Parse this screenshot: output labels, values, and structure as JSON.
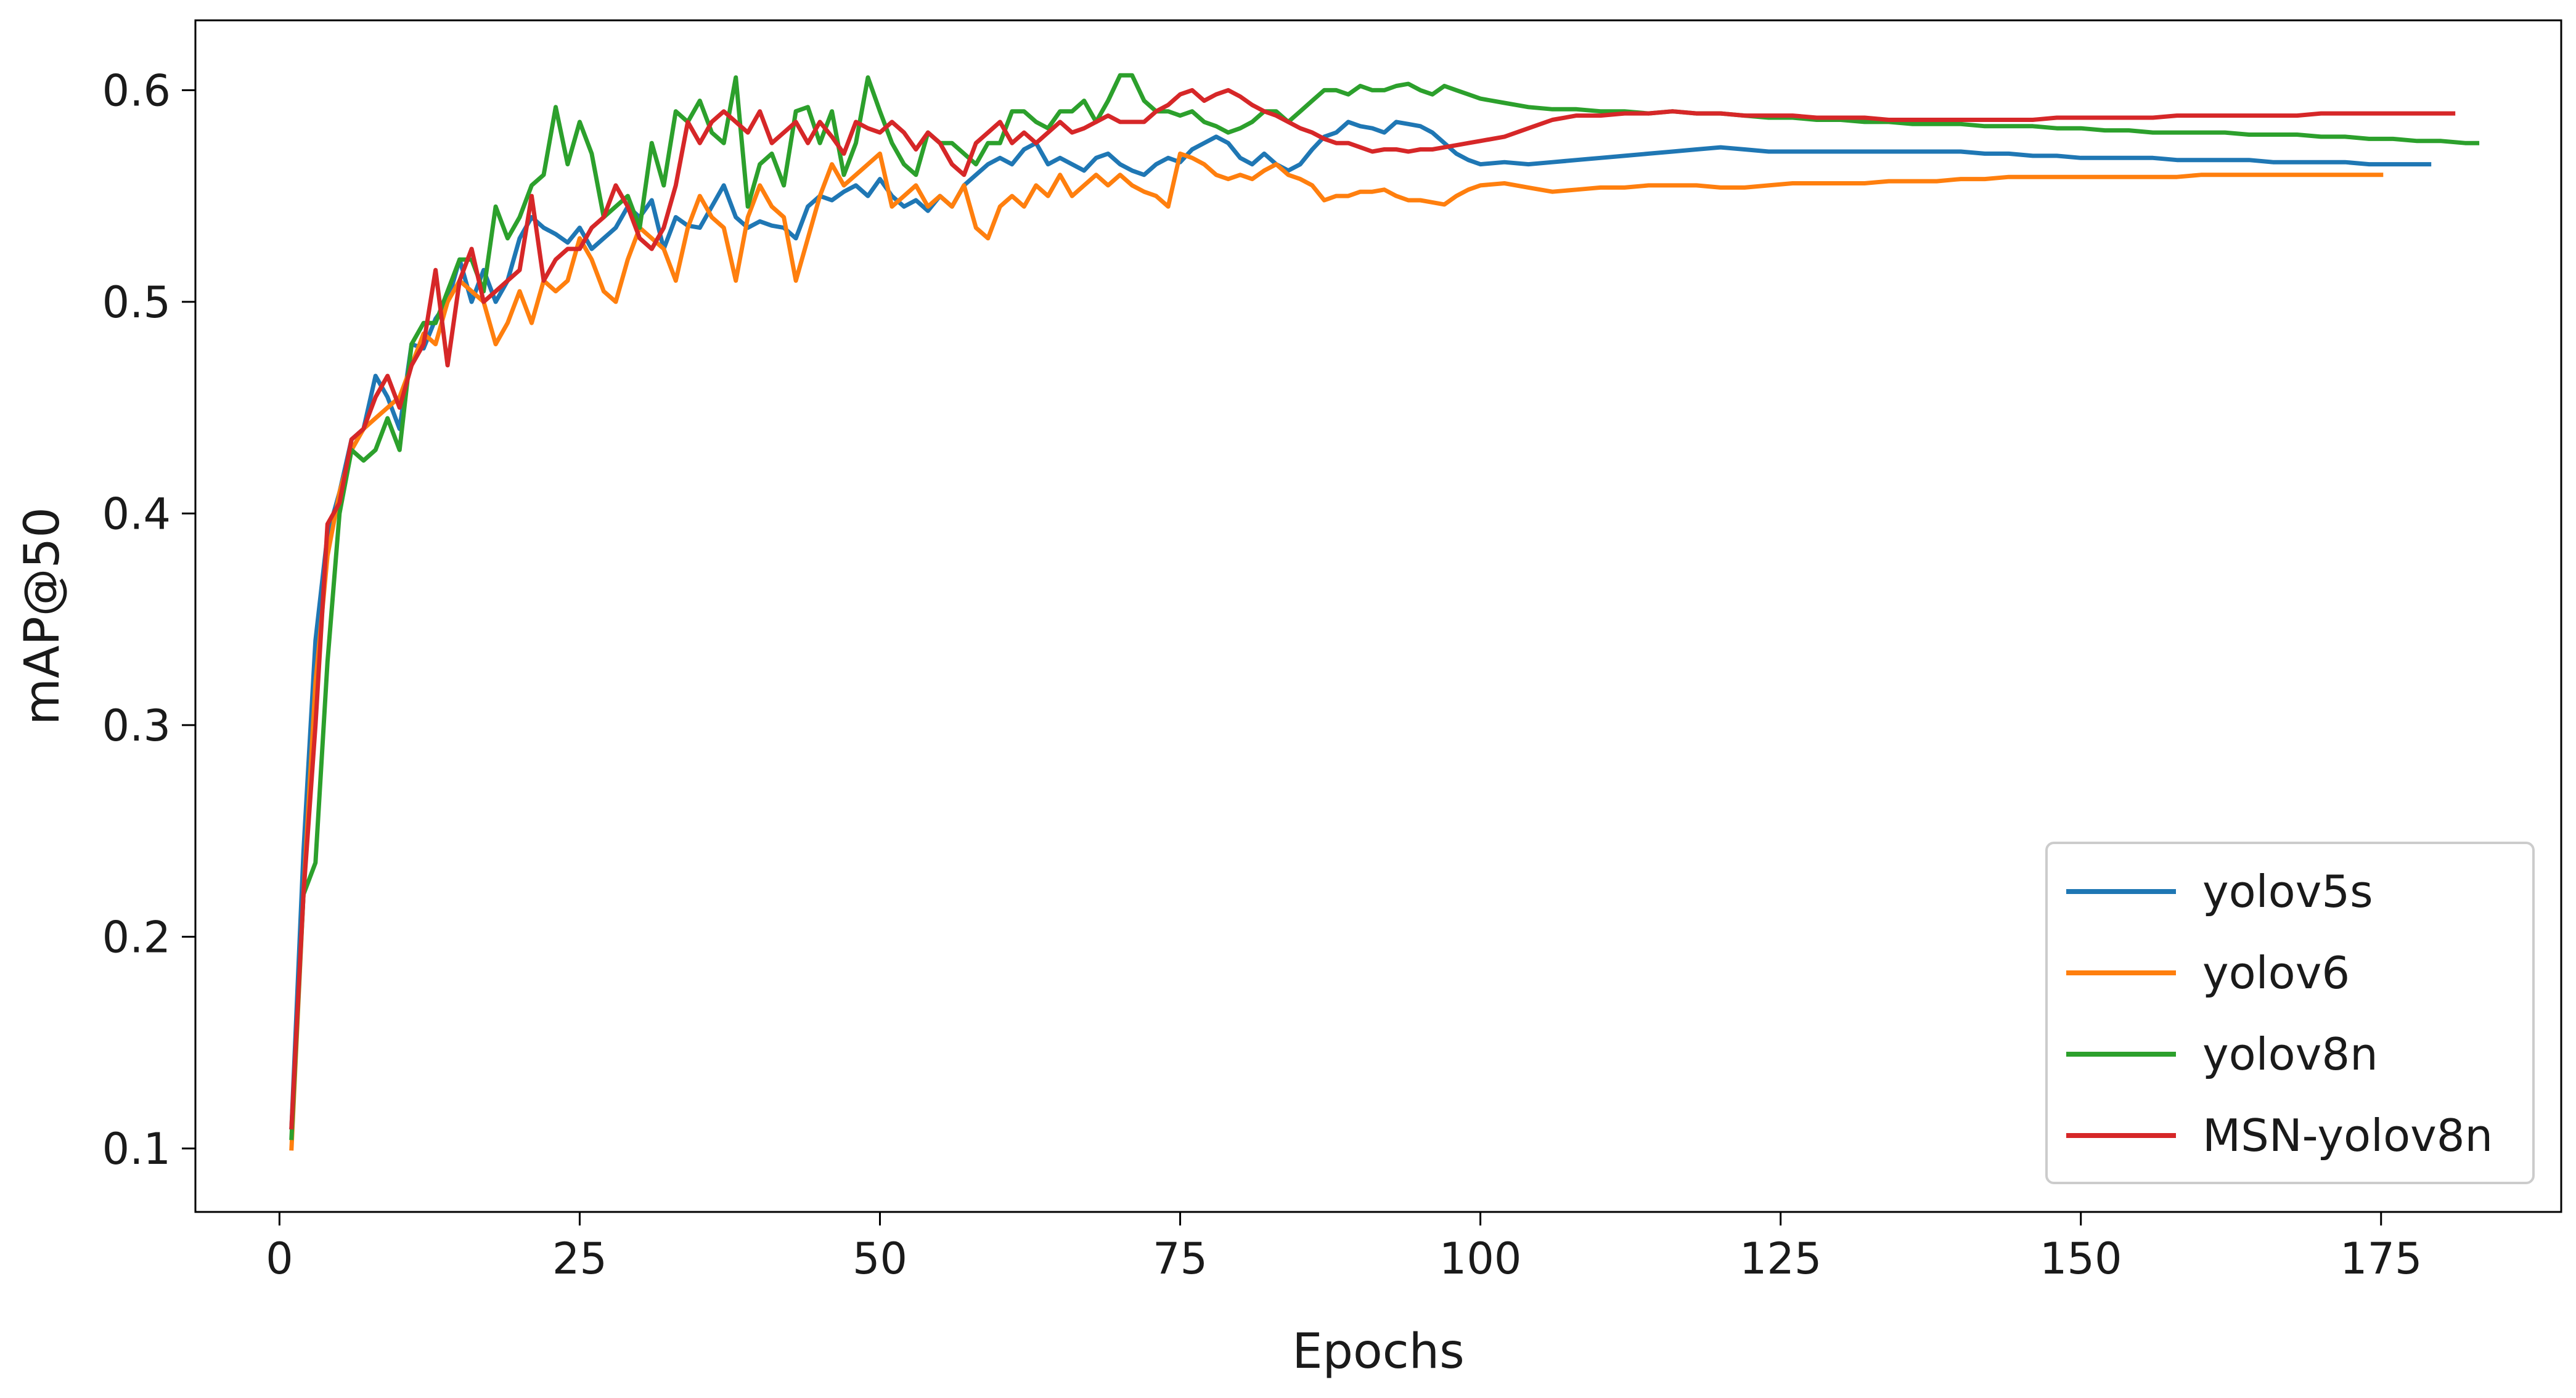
{
  "chart_data": {
    "type": "line",
    "title": "",
    "xlabel": "Epochs",
    "ylabel": "mAP@50",
    "xlim": [
      -7,
      190
    ],
    "ylim": [
      0.07,
      0.633
    ],
    "xticks": [
      0,
      25,
      50,
      75,
      100,
      125,
      150,
      175
    ],
    "yticks": [
      0.1,
      0.2,
      0.3,
      0.4,
      0.5,
      0.6
    ],
    "grid": false,
    "legend_position": "lower-right",
    "series": [
      {
        "name": "yolov5s",
        "color": "#1f77b4",
        "x": [
          1,
          2,
          3,
          4,
          5,
          6,
          7,
          8,
          9,
          10,
          11,
          12,
          13,
          14,
          15,
          16,
          17,
          18,
          19,
          20,
          21,
          22,
          23,
          24,
          25,
          26,
          27,
          28,
          29,
          30,
          31,
          32,
          33,
          34,
          35,
          36,
          37,
          38,
          39,
          40,
          41,
          42,
          43,
          44,
          45,
          46,
          47,
          48,
          49,
          50,
          51,
          52,
          53,
          54,
          55,
          56,
          57,
          58,
          59,
          60,
          61,
          62,
          63,
          64,
          65,
          66,
          67,
          68,
          69,
          70,
          71,
          72,
          73,
          74,
          75,
          76,
          77,
          78,
          79,
          80,
          81,
          82,
          83,
          84,
          85,
          86,
          87,
          88,
          89,
          90,
          91,
          92,
          93,
          94,
          95,
          96,
          97,
          98,
          99,
          100,
          102,
          104,
          106,
          108,
          110,
          112,
          114,
          116,
          118,
          120,
          122,
          124,
          126,
          128,
          130,
          132,
          134,
          136,
          138,
          140,
          142,
          144,
          146,
          148,
          150,
          152,
          154,
          156,
          158,
          160,
          162,
          164,
          166,
          168,
          170,
          172,
          174,
          176,
          178,
          179
        ],
        "y": [
          0.11,
          0.24,
          0.34,
          0.39,
          0.41,
          0.435,
          0.44,
          0.465,
          0.455,
          0.44,
          0.48,
          0.478,
          0.492,
          0.5,
          0.52,
          0.5,
          0.515,
          0.5,
          0.51,
          0.53,
          0.54,
          0.535,
          0.532,
          0.528,
          0.535,
          0.525,
          0.53,
          0.535,
          0.545,
          0.54,
          0.548,
          0.525,
          0.54,
          0.536,
          0.535,
          0.545,
          0.555,
          0.54,
          0.535,
          0.538,
          0.536,
          0.535,
          0.53,
          0.545,
          0.55,
          0.548,
          0.552,
          0.555,
          0.55,
          0.558,
          0.55,
          0.545,
          0.548,
          0.543,
          0.55,
          0.545,
          0.555,
          0.56,
          0.565,
          0.568,
          0.565,
          0.572,
          0.575,
          0.565,
          0.568,
          0.565,
          0.562,
          0.568,
          0.57,
          0.565,
          0.562,
          0.56,
          0.565,
          0.568,
          0.566,
          0.572,
          0.575,
          0.578,
          0.575,
          0.568,
          0.565,
          0.57,
          0.565,
          0.562,
          0.565,
          0.572,
          0.578,
          0.58,
          0.585,
          0.583,
          0.582,
          0.58,
          0.585,
          0.584,
          0.583,
          0.58,
          0.575,
          0.57,
          0.567,
          0.565,
          0.566,
          0.565,
          0.566,
          0.567,
          0.568,
          0.569,
          0.57,
          0.571,
          0.572,
          0.573,
          0.572,
          0.571,
          0.571,
          0.571,
          0.571,
          0.571,
          0.571,
          0.571,
          0.571,
          0.571,
          0.57,
          0.57,
          0.569,
          0.569,
          0.568,
          0.568,
          0.568,
          0.568,
          0.567,
          0.567,
          0.567,
          0.567,
          0.566,
          0.566,
          0.566,
          0.566,
          0.565,
          0.565,
          0.565,
          0.565
        ]
      },
      {
        "name": "yolov6",
        "color": "#ff7f0e",
        "x": [
          1,
          2,
          3,
          4,
          5,
          6,
          7,
          8,
          9,
          10,
          11,
          12,
          13,
          14,
          15,
          16,
          17,
          18,
          19,
          20,
          21,
          22,
          23,
          24,
          25,
          26,
          27,
          28,
          29,
          30,
          31,
          32,
          33,
          34,
          35,
          36,
          37,
          38,
          39,
          40,
          41,
          42,
          43,
          44,
          45,
          46,
          47,
          48,
          49,
          50,
          51,
          52,
          53,
          54,
          55,
          56,
          57,
          58,
          59,
          60,
          61,
          62,
          63,
          64,
          65,
          66,
          67,
          68,
          69,
          70,
          71,
          72,
          73,
          74,
          75,
          76,
          77,
          78,
          79,
          80,
          81,
          82,
          83,
          84,
          85,
          86,
          87,
          88,
          89,
          90,
          91,
          92,
          93,
          94,
          95,
          96,
          97,
          98,
          99,
          100,
          102,
          104,
          106,
          108,
          110,
          112,
          114,
          116,
          118,
          120,
          122,
          124,
          126,
          128,
          130,
          132,
          134,
          136,
          138,
          140,
          142,
          144,
          146,
          148,
          150,
          152,
          154,
          156,
          158,
          160,
          162,
          164,
          166,
          168,
          170,
          172,
          174,
          175
        ],
        "y": [
          0.1,
          0.22,
          0.32,
          0.38,
          0.41,
          0.43,
          0.44,
          0.445,
          0.45,
          0.455,
          0.47,
          0.485,
          0.48,
          0.5,
          0.51,
          0.505,
          0.5,
          0.48,
          0.49,
          0.505,
          0.49,
          0.51,
          0.505,
          0.51,
          0.53,
          0.52,
          0.505,
          0.5,
          0.52,
          0.535,
          0.53,
          0.525,
          0.51,
          0.535,
          0.55,
          0.54,
          0.535,
          0.51,
          0.54,
          0.555,
          0.545,
          0.54,
          0.51,
          0.53,
          0.55,
          0.565,
          0.555,
          0.56,
          0.565,
          0.57,
          0.545,
          0.55,
          0.555,
          0.545,
          0.55,
          0.545,
          0.555,
          0.535,
          0.53,
          0.545,
          0.55,
          0.545,
          0.555,
          0.55,
          0.56,
          0.55,
          0.555,
          0.56,
          0.555,
          0.56,
          0.555,
          0.552,
          0.55,
          0.545,
          0.57,
          0.568,
          0.565,
          0.56,
          0.558,
          0.56,
          0.558,
          0.562,
          0.565,
          0.56,
          0.558,
          0.555,
          0.548,
          0.55,
          0.55,
          0.552,
          0.552,
          0.553,
          0.55,
          0.548,
          0.548,
          0.547,
          0.546,
          0.55,
          0.553,
          0.555,
          0.556,
          0.554,
          0.552,
          0.553,
          0.554,
          0.554,
          0.555,
          0.555,
          0.555,
          0.554,
          0.554,
          0.555,
          0.556,
          0.556,
          0.556,
          0.556,
          0.557,
          0.557,
          0.557,
          0.558,
          0.558,
          0.559,
          0.559,
          0.559,
          0.559,
          0.559,
          0.559,
          0.559,
          0.559,
          0.56,
          0.56,
          0.56,
          0.56,
          0.56,
          0.56,
          0.56,
          0.56,
          0.56
        ]
      },
      {
        "name": "yolov8n",
        "color": "#2ca02c",
        "x": [
          1,
          2,
          3,
          4,
          5,
          6,
          7,
          8,
          9,
          10,
          11,
          12,
          13,
          14,
          15,
          16,
          17,
          18,
          19,
          20,
          21,
          22,
          23,
          24,
          25,
          26,
          27,
          28,
          29,
          30,
          31,
          32,
          33,
          34,
          35,
          36,
          37,
          38,
          39,
          40,
          41,
          42,
          43,
          44,
          45,
          46,
          47,
          48,
          49,
          50,
          51,
          52,
          53,
          54,
          55,
          56,
          57,
          58,
          59,
          60,
          61,
          62,
          63,
          64,
          65,
          66,
          67,
          68,
          69,
          70,
          71,
          72,
          73,
          74,
          75,
          76,
          77,
          78,
          79,
          80,
          81,
          82,
          83,
          84,
          85,
          86,
          87,
          88,
          89,
          90,
          91,
          92,
          93,
          94,
          95,
          96,
          97,
          98,
          99,
          100,
          102,
          104,
          106,
          108,
          110,
          112,
          114,
          116,
          118,
          120,
          122,
          124,
          126,
          128,
          130,
          132,
          134,
          136,
          138,
          140,
          142,
          144,
          146,
          148,
          150,
          152,
          154,
          156,
          158,
          160,
          162,
          164,
          166,
          168,
          170,
          172,
          174,
          176,
          178,
          180,
          182,
          183
        ],
        "y": [
          0.105,
          0.22,
          0.235,
          0.33,
          0.4,
          0.43,
          0.425,
          0.43,
          0.445,
          0.43,
          0.48,
          0.49,
          0.49,
          0.505,
          0.52,
          0.52,
          0.505,
          0.545,
          0.53,
          0.54,
          0.555,
          0.56,
          0.592,
          0.565,
          0.585,
          0.57,
          0.54,
          0.545,
          0.55,
          0.535,
          0.575,
          0.555,
          0.59,
          0.585,
          0.595,
          0.58,
          0.575,
          0.606,
          0.545,
          0.565,
          0.57,
          0.555,
          0.59,
          0.592,
          0.575,
          0.59,
          0.56,
          0.575,
          0.606,
          0.59,
          0.575,
          0.565,
          0.56,
          0.58,
          0.575,
          0.575,
          0.57,
          0.565,
          0.575,
          0.575,
          0.59,
          0.59,
          0.585,
          0.582,
          0.59,
          0.59,
          0.595,
          0.585,
          0.595,
          0.607,
          0.607,
          0.595,
          0.59,
          0.59,
          0.588,
          0.59,
          0.585,
          0.583,
          0.58,
          0.582,
          0.585,
          0.59,
          0.59,
          0.585,
          0.59,
          0.595,
          0.6,
          0.6,
          0.598,
          0.602,
          0.6,
          0.6,
          0.602,
          0.603,
          0.6,
          0.598,
          0.602,
          0.6,
          0.598,
          0.596,
          0.594,
          0.592,
          0.591,
          0.591,
          0.59,
          0.59,
          0.589,
          0.59,
          0.589,
          0.589,
          0.588,
          0.587,
          0.587,
          0.586,
          0.586,
          0.585,
          0.585,
          0.584,
          0.584,
          0.584,
          0.583,
          0.583,
          0.583,
          0.582,
          0.582,
          0.581,
          0.581,
          0.58,
          0.58,
          0.58,
          0.58,
          0.579,
          0.579,
          0.579,
          0.578,
          0.578,
          0.577,
          0.577,
          0.576,
          0.576,
          0.575,
          0.575
        ]
      },
      {
        "name": "MSN-yolov8n",
        "color": "#d62728",
        "x": [
          1,
          2,
          3,
          4,
          5,
          6,
          7,
          8,
          9,
          10,
          11,
          12,
          13,
          14,
          15,
          16,
          17,
          18,
          19,
          20,
          21,
          22,
          23,
          24,
          25,
          26,
          27,
          28,
          29,
          30,
          31,
          32,
          33,
          34,
          35,
          36,
          37,
          38,
          39,
          40,
          41,
          42,
          43,
          44,
          45,
          46,
          47,
          48,
          49,
          50,
          51,
          52,
          53,
          54,
          55,
          56,
          57,
          58,
          59,
          60,
          61,
          62,
          63,
          64,
          65,
          66,
          67,
          68,
          69,
          70,
          71,
          72,
          73,
          74,
          75,
          76,
          77,
          78,
          79,
          80,
          81,
          82,
          83,
          84,
          85,
          86,
          87,
          88,
          89,
          90,
          91,
          92,
          93,
          94,
          95,
          96,
          97,
          98,
          99,
          100,
          102,
          104,
          106,
          108,
          110,
          112,
          114,
          116,
          118,
          120,
          122,
          124,
          126,
          128,
          130,
          132,
          134,
          136,
          138,
          140,
          142,
          144,
          146,
          148,
          150,
          152,
          154,
          156,
          158,
          160,
          162,
          164,
          166,
          168,
          170,
          172,
          174,
          176,
          178,
          180,
          181
        ],
        "y": [
          0.11,
          0.22,
          0.3,
          0.395,
          0.405,
          0.435,
          0.44,
          0.455,
          0.465,
          0.45,
          0.47,
          0.48,
          0.515,
          0.47,
          0.51,
          0.525,
          0.5,
          0.505,
          0.51,
          0.515,
          0.55,
          0.51,
          0.52,
          0.525,
          0.525,
          0.535,
          0.54,
          0.555,
          0.545,
          0.53,
          0.525,
          0.535,
          0.555,
          0.585,
          0.575,
          0.585,
          0.59,
          0.585,
          0.58,
          0.59,
          0.575,
          0.58,
          0.585,
          0.575,
          0.585,
          0.578,
          0.57,
          0.585,
          0.582,
          0.58,
          0.585,
          0.58,
          0.572,
          0.58,
          0.575,
          0.565,
          0.56,
          0.575,
          0.58,
          0.585,
          0.575,
          0.58,
          0.575,
          0.58,
          0.585,
          0.58,
          0.582,
          0.585,
          0.588,
          0.585,
          0.585,
          0.585,
          0.59,
          0.593,
          0.598,
          0.6,
          0.595,
          0.598,
          0.6,
          0.597,
          0.593,
          0.59,
          0.588,
          0.585,
          0.582,
          0.58,
          0.577,
          0.575,
          0.575,
          0.573,
          0.571,
          0.572,
          0.572,
          0.571,
          0.572,
          0.572,
          0.573,
          0.574,
          0.575,
          0.576,
          0.578,
          0.582,
          0.586,
          0.588,
          0.588,
          0.589,
          0.589,
          0.59,
          0.589,
          0.589,
          0.588,
          0.588,
          0.588,
          0.587,
          0.587,
          0.587,
          0.586,
          0.586,
          0.586,
          0.586,
          0.586,
          0.586,
          0.586,
          0.587,
          0.587,
          0.587,
          0.587,
          0.587,
          0.588,
          0.588,
          0.588,
          0.588,
          0.588,
          0.588,
          0.589,
          0.589,
          0.589,
          0.589,
          0.589,
          0.589,
          0.589
        ]
      }
    ]
  }
}
